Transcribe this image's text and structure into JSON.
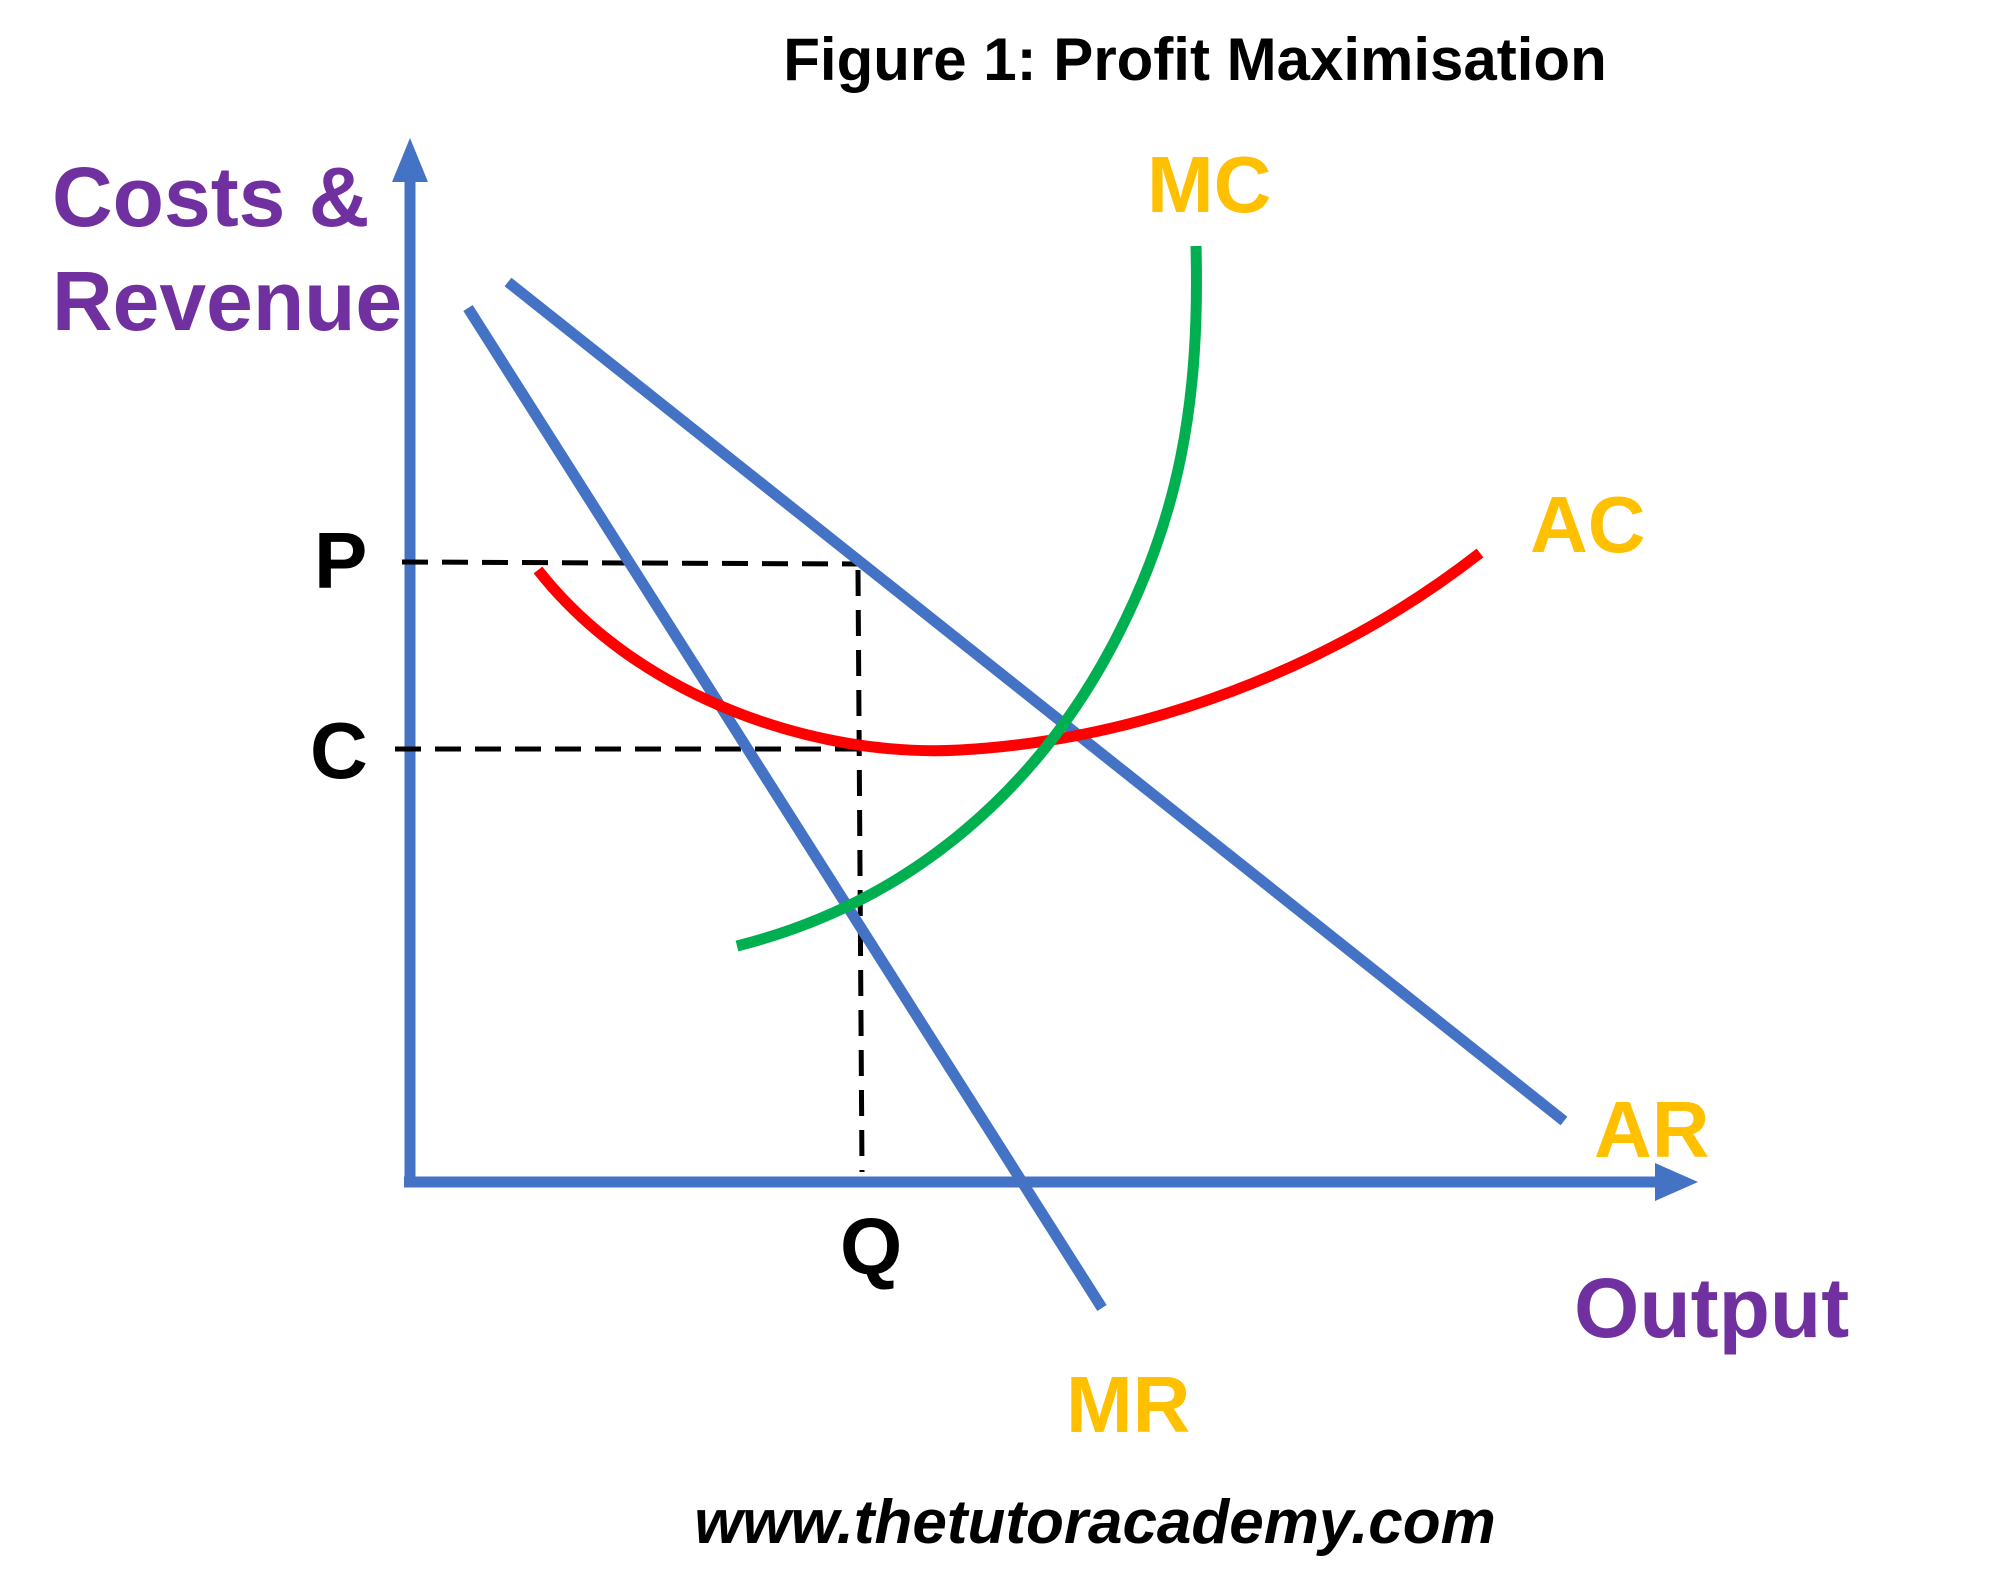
{
  "title": "Figure 1: Profit Maximisation",
  "y_axis_label": [
    "Costs &",
    "Revenue"
  ],
  "x_axis_label": "Output",
  "curve_labels": {
    "mc": "MC",
    "ac": "AC",
    "ar": "AR",
    "mr": "MR"
  },
  "point_labels": {
    "p": "P",
    "c": "C",
    "q": "Q"
  },
  "footer": "www.thetutoracademy.com",
  "colors": {
    "axis": "#4472C4",
    "axis_label": "#7030A0",
    "curve_label": "#FFC000",
    "mc": "#00B050",
    "ac": "#FF0000",
    "ar": "#4472C4",
    "mr": "#4472C4",
    "guide": "#000000",
    "text": "#000000"
  }
}
